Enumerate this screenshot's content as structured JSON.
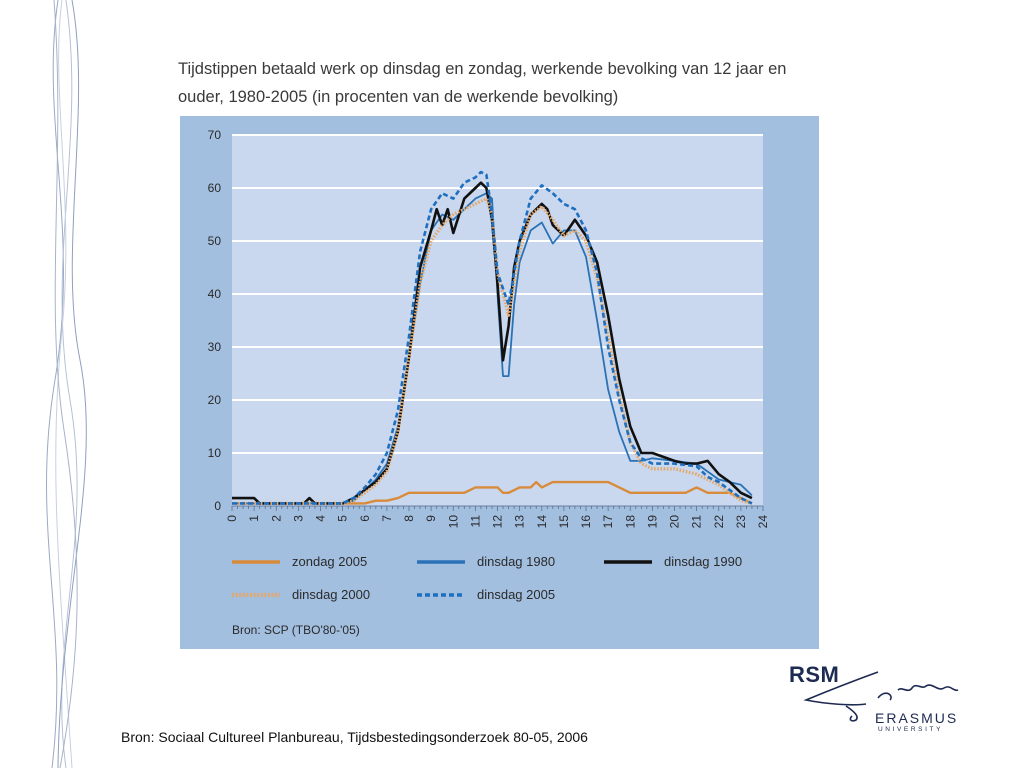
{
  "page": {
    "title_line1": "Tijdstippen betaald werk op dinsdag en zondag, werkende bevolking van 12 jaar en",
    "title_line2": "ouder, 1980-2005 (in procenten van de werkende bevolking)",
    "footer_source": "Bron: Sociaal Cultureel Planbureau, Tijdsbestedingsonderzoek 80-05, 2006"
  },
  "logo": {
    "rsm": "RSM",
    "erasmus": "ERASMUS",
    "university": "UNIVERSITY"
  },
  "chart_data": {
    "type": "line",
    "title": "Tijdstippen betaald werk op dinsdag en zondag, werkende bevolking van 12 jaar en ouder, 1980-2005 (in procenten van de werkende bevolking)",
    "xlabel": "",
    "ylabel": "",
    "xlim": [
      0,
      24
    ],
    "ylim": [
      0,
      70
    ],
    "yticks": [
      0,
      10,
      20,
      30,
      40,
      50,
      60,
      70
    ],
    "xticks": [
      0,
      1,
      2,
      3,
      4,
      5,
      6,
      7,
      8,
      9,
      10,
      11,
      12,
      13,
      14,
      15,
      16,
      17,
      18,
      19,
      20,
      21,
      22,
      23,
      24
    ],
    "grid": "horizontal",
    "legend_position": "bottom",
    "source_note": "Bron: SCP (TBO'80-'05)",
    "colors": {
      "plot_bg": "#c9d8ee",
      "panel_bg": "#a3bfe0",
      "grid": "#ffffff",
      "axis_text": "#2a2a2a"
    },
    "series": [
      {
        "name": "zondag 2005",
        "color": "#d98b3c",
        "style": "solid",
        "width": 2.4,
        "x": [
          0,
          5,
          5.5,
          6,
          6.5,
          7,
          7.5,
          8,
          9,
          10,
          10.5,
          11,
          12,
          12.25,
          12.5,
          13,
          13.5,
          13.75,
          14,
          14.5,
          15,
          16,
          17,
          17.5,
          18,
          19,
          20,
          20.5,
          21,
          21.5,
          22,
          22.5,
          23,
          23.5
        ],
        "y": [
          0.5,
          0.5,
          0.5,
          0.5,
          1,
          1,
          1.5,
          2.5,
          2.5,
          2.5,
          2.5,
          3.5,
          3.5,
          2.5,
          2.5,
          3.5,
          3.5,
          4.5,
          3.5,
          4.5,
          4.5,
          4.5,
          4.5,
          3.5,
          2.5,
          2.5,
          2.5,
          2.5,
          3.5,
          2.5,
          2.5,
          2.5,
          1.5,
          0.5
        ]
      },
      {
        "name": "dinsdag 1980",
        "color": "#2a72b5",
        "style": "solid",
        "width": 1.8,
        "x": [
          0,
          3,
          5,
          5.5,
          6,
          6.5,
          7,
          7.5,
          8,
          8.5,
          9,
          9.5,
          10,
          10.5,
          11,
          11.5,
          11.75,
          12,
          12.25,
          12.5,
          12.75,
          13,
          13.5,
          14,
          14.5,
          15,
          15.5,
          16,
          16.5,
          17,
          17.5,
          18,
          18.5,
          19,
          20,
          21,
          21.5,
          22,
          22.5,
          23,
          23.5
        ],
        "y": [
          0.5,
          0.5,
          0.5,
          1,
          3,
          5,
          8,
          15,
          28,
          42,
          52,
          55,
          54,
          56,
          58,
          59,
          58,
          40,
          24.5,
          24.5,
          38,
          46,
          52,
          53.5,
          49.5,
          52,
          52,
          47,
          35,
          22,
          14,
          8.5,
          8.5,
          9,
          8.5,
          8,
          6.5,
          5,
          4.5,
          4,
          2
        ]
      },
      {
        "name": "dinsdag 1990",
        "color": "#111111",
        "style": "solid",
        "width": 2.6,
        "x": [
          0,
          1,
          1.25,
          2,
          3.25,
          3.5,
          3.75,
          5,
          5.5,
          6,
          6.5,
          7,
          7.5,
          8,
          8.5,
          9,
          9.25,
          9.5,
          9.75,
          10,
          10.5,
          11,
          11.25,
          11.5,
          11.75,
          12,
          12.25,
          12.5,
          12.75,
          13,
          13.5,
          14,
          14.25,
          14.5,
          15,
          15.5,
          16,
          16.5,
          17,
          17.5,
          18,
          18.5,
          19,
          20,
          20.5,
          21,
          21.5,
          22,
          22.5,
          23,
          23.5
        ],
        "y": [
          1.5,
          1.5,
          0.5,
          0.5,
          0.5,
          1.5,
          0.5,
          0.5,
          1.5,
          3,
          4.5,
          7,
          14,
          28,
          45,
          52,
          56,
          53,
          56,
          51.5,
          58,
          60,
          61,
          60,
          54,
          42,
          27.5,
          34,
          45,
          50,
          55,
          57,
          56,
          53,
          51,
          54,
          51,
          46,
          36,
          24,
          15,
          10,
          10,
          8.5,
          8,
          8,
          8.5,
          6,
          4.5,
          2.5,
          1.5
        ]
      },
      {
        "name": "dinsdag 2000",
        "color": "#e3a86b",
        "style": "dotted",
        "width": 3.2,
        "x": [
          0,
          4,
          5,
          5.5,
          6,
          6.5,
          7,
          7.5,
          8,
          8.5,
          9,
          9.5,
          10,
          10.5,
          11,
          11.5,
          11.75,
          12,
          12.5,
          13,
          13.5,
          14,
          14.5,
          15,
          15.5,
          16,
          16.5,
          17,
          17.5,
          18,
          18.5,
          19,
          20,
          21,
          21.5,
          22,
          22.5,
          23,
          23.5
        ],
        "y": [
          0.5,
          0.5,
          0.5,
          1,
          2.5,
          4,
          6.5,
          14,
          28,
          42,
          50,
          53,
          55,
          56,
          57,
          58,
          55,
          44,
          36,
          48,
          55,
          56.5,
          54,
          51,
          52,
          50,
          43,
          32,
          21,
          12,
          8,
          7,
          7,
          6,
          5,
          4,
          2.5,
          1,
          0.5
        ]
      },
      {
        "name": "dinsdag 2005",
        "color": "#1f6fc0",
        "style": "dashed",
        "width": 2.6,
        "x": [
          0,
          4,
          5,
          5.5,
          6,
          6.5,
          7,
          7.5,
          8,
          8.5,
          9,
          9.5,
          10,
          10.5,
          11,
          11.25,
          11.5,
          11.75,
          12,
          12.5,
          13,
          13.5,
          14,
          14.5,
          15,
          15.5,
          16,
          16.5,
          17,
          17.5,
          18,
          18.5,
          19,
          20,
          21,
          21.5,
          22,
          22.5,
          23,
          23.5
        ],
        "y": [
          0.5,
          0.5,
          0.5,
          1.5,
          3.5,
          6,
          10,
          18,
          32,
          48,
          56,
          59,
          58,
          61,
          62,
          63,
          62.5,
          55,
          44,
          38,
          50,
          58,
          60.5,
          59,
          57,
          56,
          52,
          44,
          30,
          20,
          12,
          9,
          8,
          8,
          7.5,
          5.5,
          4.5,
          3,
          1.5,
          0.5
        ]
      }
    ]
  }
}
